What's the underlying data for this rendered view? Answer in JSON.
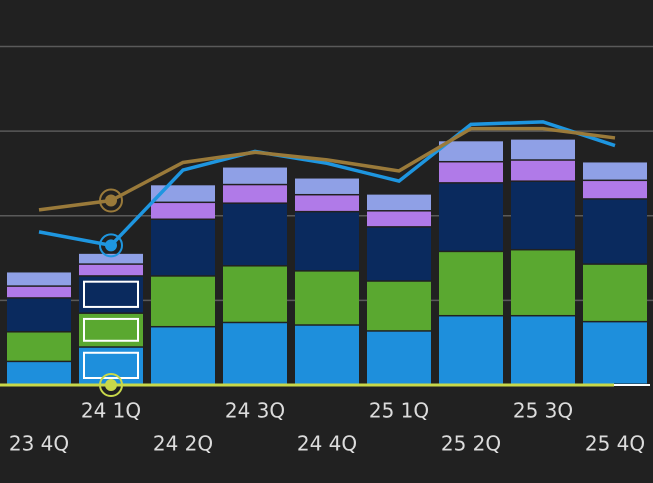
{
  "chart_data": {
    "type": "bar",
    "categories": [
      "23 4Q",
      "24 1Q",
      "24 2Q",
      "24 3Q",
      "24 4Q",
      "25 1Q",
      "25 2Q",
      "25 3Q",
      "25 4Q"
    ],
    "series": [
      {
        "color": "#1e8fdc",
        "values": [
          0.27,
          0.44,
          0.68,
          0.73,
          0.7,
          0.63,
          0.81,
          0.81,
          0.74
        ]
      },
      {
        "color": "#5aa830",
        "values": [
          0.35,
          0.4,
          0.6,
          0.67,
          0.64,
          0.59,
          0.76,
          0.78,
          0.68
        ]
      },
      {
        "color": "#0a2a5e",
        "values": [
          0.4,
          0.44,
          0.67,
          0.74,
          0.7,
          0.64,
          0.81,
          0.81,
          0.77
        ]
      },
      {
        "color": "#b07ae8",
        "values": [
          0.14,
          0.14,
          0.2,
          0.22,
          0.2,
          0.19,
          0.25,
          0.25,
          0.22
        ]
      },
      {
        "color": "#8fa0e6",
        "values": [
          0.17,
          0.13,
          0.21,
          0.21,
          0.2,
          0.2,
          0.25,
          0.25,
          0.22
        ]
      }
    ],
    "lines": [
      {
        "color": "#1e96e0",
        "values": [
          1.81,
          1.65,
          2.54,
          2.76,
          2.62,
          2.41,
          3.08,
          3.11,
          2.83
        ]
      },
      {
        "color": "#9a7a3a",
        "values": [
          2.07,
          2.18,
          2.63,
          2.75,
          2.66,
          2.53,
          3.03,
          3.03,
          2.92
        ]
      }
    ],
    "ylim": [
      0,
      4.55
    ],
    "yticks": [
      1,
      2,
      3,
      4
    ],
    "grid": true
  }
}
